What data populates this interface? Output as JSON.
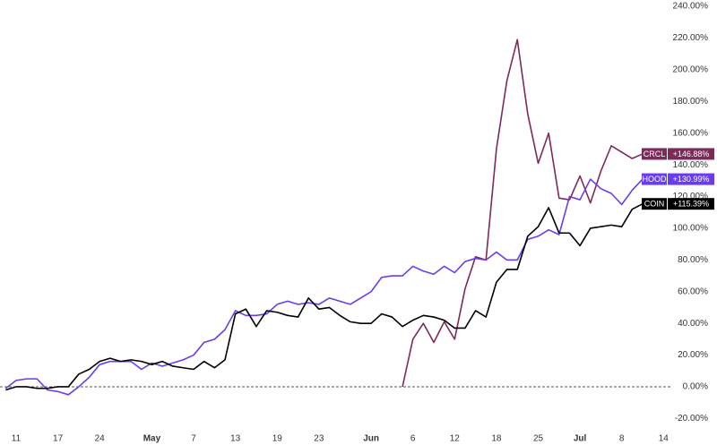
{
  "chart_data": {
    "type": "line",
    "categories": [
      null,
      "11",
      null,
      null,
      null,
      "17",
      null,
      null,
      null,
      "24",
      null,
      null,
      null,
      null,
      "May",
      null,
      null,
      null,
      "7",
      null,
      null,
      null,
      "13",
      null,
      null,
      null,
      "19",
      null,
      null,
      null,
      "23",
      null,
      null,
      null,
      null,
      "Jun",
      null,
      null,
      null,
      "6",
      null,
      null,
      null,
      "12",
      null,
      null,
      null,
      "18",
      null,
      null,
      null,
      "25",
      null,
      null,
      null,
      "Jul",
      null,
      null,
      null,
      "8",
      null,
      null,
      null,
      "14"
    ],
    "series": [
      {
        "name": "CRCL",
        "color": "#7b2a5a",
        "values": [
          null,
          null,
          null,
          null,
          null,
          null,
          null,
          null,
          null,
          null,
          null,
          null,
          null,
          null,
          null,
          null,
          null,
          null,
          null,
          null,
          null,
          null,
          null,
          null,
          null,
          null,
          null,
          null,
          null,
          null,
          null,
          null,
          null,
          null,
          null,
          null,
          null,
          null,
          0,
          30,
          40,
          28,
          41,
          30,
          62,
          82,
          80,
          150,
          193,
          219,
          172,
          141,
          160,
          119,
          118,
          133,
          116,
          136,
          152,
          148,
          144,
          146.88,
          null,
          null
        ],
        "value_labels": [
          null,
          null,
          null,
          null,
          null,
          null,
          null,
          null,
          null,
          null,
          null,
          null,
          null,
          null,
          null,
          null,
          null,
          null,
          null,
          null,
          null,
          null,
          null,
          null,
          null,
          null,
          null,
          null,
          null,
          null,
          null,
          null,
          null,
          null,
          null,
          null,
          null,
          null,
          null,
          null,
          null,
          null,
          null,
          null,
          null,
          null,
          null,
          null,
          null,
          null,
          null,
          null,
          null,
          null,
          null,
          null,
          null,
          null,
          null,
          null,
          null,
          "+146.88%",
          null,
          null
        ]
      },
      {
        "name": "HOOD",
        "color": "#6a3cf0",
        "values": [
          -1,
          4,
          5,
          5,
          -2,
          -3,
          -5,
          0,
          6,
          14,
          16,
          16,
          16,
          11,
          15,
          13,
          15,
          17,
          20,
          28,
          30,
          36,
          48,
          45,
          45,
          46,
          52,
          54,
          52,
          53,
          52,
          56,
          54,
          52,
          56,
          60,
          69,
          70,
          70,
          76,
          73,
          71,
          76,
          72,
          79,
          81,
          80,
          85,
          80,
          80,
          93,
          95,
          99,
          96,
          120,
          118,
          131,
          125,
          122,
          115,
          124,
          130.99,
          null,
          null
        ],
        "value_labels": [
          null,
          null,
          null,
          null,
          null,
          null,
          null,
          null,
          null,
          null,
          null,
          null,
          null,
          null,
          null,
          null,
          null,
          null,
          null,
          null,
          null,
          null,
          null,
          null,
          null,
          null,
          null,
          null,
          null,
          null,
          null,
          null,
          null,
          null,
          null,
          null,
          null,
          null,
          null,
          null,
          null,
          null,
          null,
          null,
          null,
          null,
          null,
          null,
          null,
          null,
          null,
          null,
          null,
          null,
          null,
          null,
          null,
          null,
          null,
          null,
          null,
          "+130.99%",
          null,
          null
        ]
      },
      {
        "name": "COIN",
        "color": "#000000",
        "values": [
          -2,
          0,
          0,
          -1,
          -1,
          0,
          0,
          8,
          11,
          16,
          18,
          16,
          17,
          16,
          14,
          16,
          13,
          12,
          11,
          16,
          12,
          17,
          46,
          49,
          38,
          48,
          47,
          45,
          44,
          56,
          49,
          50,
          45,
          41,
          40,
          40,
          46,
          44,
          38,
          42,
          45,
          44,
          42,
          37,
          37,
          48,
          44,
          66,
          74,
          74,
          95,
          101,
          113,
          97,
          97,
          89,
          100,
          101,
          102,
          101,
          112,
          115.39,
          null,
          null
        ],
        "value_labels": [
          null,
          null,
          null,
          null,
          null,
          null,
          null,
          null,
          null,
          null,
          null,
          null,
          null,
          null,
          null,
          null,
          null,
          null,
          null,
          null,
          null,
          null,
          null,
          null,
          null,
          null,
          null,
          null,
          null,
          null,
          null,
          null,
          null,
          null,
          null,
          null,
          null,
          null,
          null,
          null,
          null,
          null,
          null,
          null,
          null,
          null,
          null,
          null,
          null,
          null,
          null,
          null,
          null,
          null,
          null,
          null,
          null,
          null,
          null,
          null,
          null,
          "+115.39%",
          null,
          null
        ]
      }
    ],
    "ylim": [
      -26,
      244
    ],
    "yticks": [
      {
        "value": -20,
        "label": "-20.00%"
      },
      {
        "value": 0,
        "label": "0.00%"
      },
      {
        "value": 20,
        "label": "20.00%"
      },
      {
        "value": 40,
        "label": "40.00%"
      },
      {
        "value": 60,
        "label": "60.00%"
      },
      {
        "value": 80,
        "label": "80.00%"
      },
      {
        "value": 100,
        "label": "100.00%"
      },
      {
        "value": 120,
        "label": "120.00%"
      },
      {
        "value": 140,
        "label": "140.00%"
      },
      {
        "value": 160,
        "label": "160.00%"
      },
      {
        "value": 180,
        "label": "180.00%"
      },
      {
        "value": 200,
        "label": "200.00%"
      },
      {
        "value": 220,
        "label": "220.00%"
      },
      {
        "value": 240,
        "label": "240.00%"
      }
    ],
    "zero_line": true,
    "grid": false
  }
}
